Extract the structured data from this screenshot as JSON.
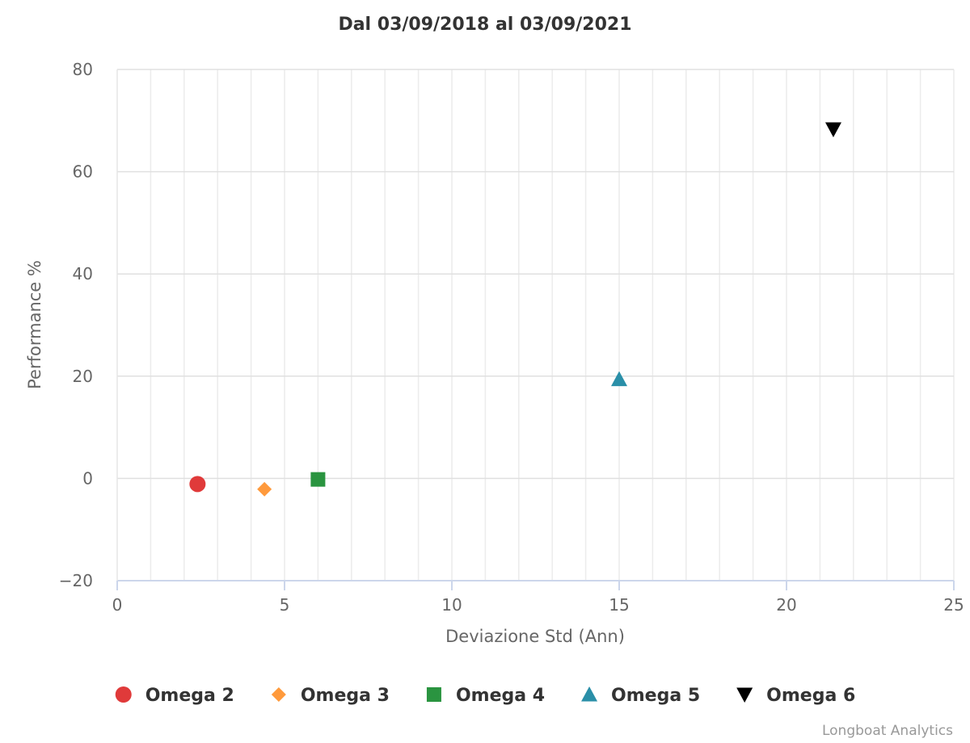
{
  "chart_data": {
    "type": "scatter",
    "title": "Dal 03/09/2018 al 03/09/2021",
    "xlabel": "Deviazione Std (Ann)",
    "ylabel": "Performance %",
    "xlim": [
      0,
      25
    ],
    "ylim": [
      -20,
      80
    ],
    "x_ticks": [
      0,
      5,
      10,
      15,
      20,
      25
    ],
    "y_ticks": [
      -20,
      0,
      20,
      40,
      60,
      80
    ],
    "x_tick_labels": [
      "0",
      "5",
      "10",
      "15",
      "20",
      "25"
    ],
    "y_tick_labels": [
      "−20",
      "0",
      "20",
      "40",
      "60",
      "80"
    ],
    "x_minor_step": 1,
    "grid": true,
    "legend_position": "bottom-center",
    "series": [
      {
        "name": "Omega 2",
        "marker": "circle",
        "color": "#e03a3a",
        "points": [
          {
            "x": 2.4,
            "y": -1.1
          }
        ]
      },
      {
        "name": "Omega 3",
        "marker": "diamond",
        "color": "#ff9a3c",
        "points": [
          {
            "x": 4.4,
            "y": -2.1
          }
        ]
      },
      {
        "name": "Omega 4",
        "marker": "square",
        "color": "#2a9440",
        "points": [
          {
            "x": 6.0,
            "y": -0.2
          }
        ]
      },
      {
        "name": "Omega 5",
        "marker": "triangle-up",
        "color": "#2a8fa8",
        "points": [
          {
            "x": 15.0,
            "y": 19.4
          }
        ]
      },
      {
        "name": "Omega 6",
        "marker": "triangle-down",
        "color": "#000000",
        "points": [
          {
            "x": 21.4,
            "y": 68.3
          }
        ]
      }
    ]
  },
  "credits": "Longboat Analytics"
}
